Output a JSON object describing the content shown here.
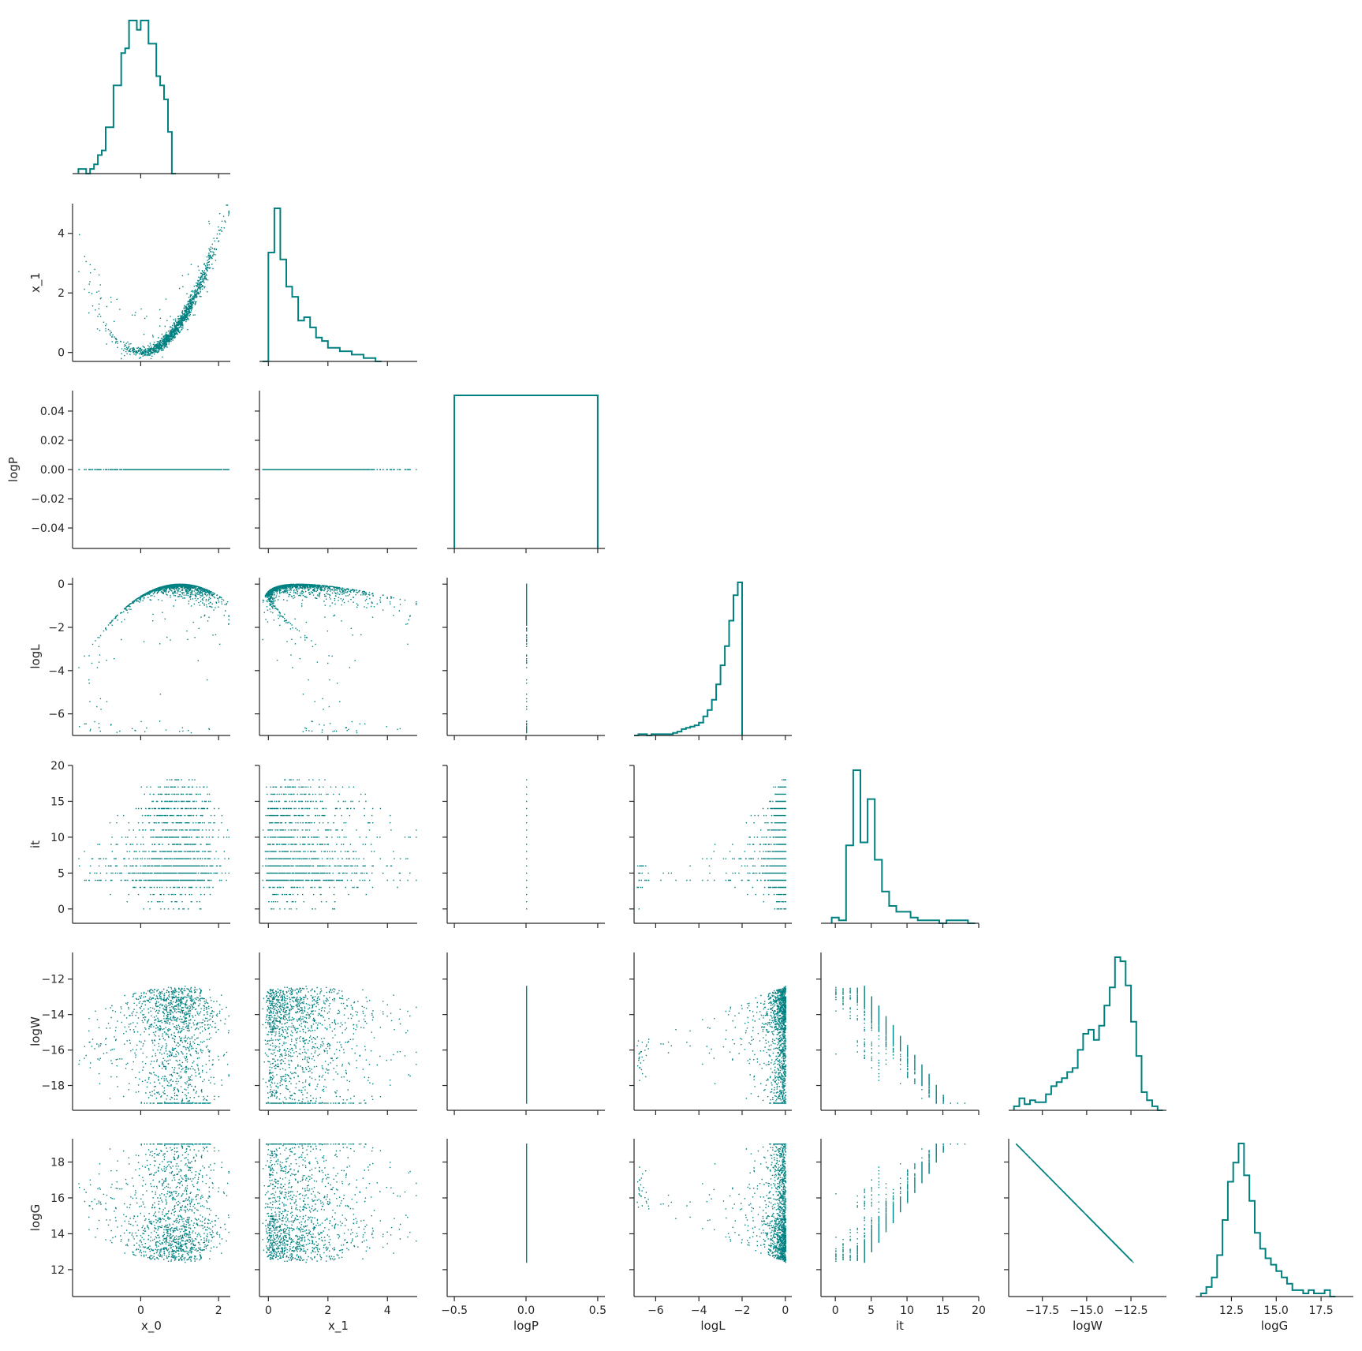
{
  "figure": {
    "color": "#008080",
    "variables": [
      "x_0",
      "x_1",
      "logP",
      "logL",
      "it",
      "logW",
      "logG"
    ]
  },
  "chart_data": {
    "type": "corner",
    "variables": [
      "x_0",
      "x_1",
      "logP",
      "logL",
      "it",
      "logW",
      "logG"
    ],
    "axes": {
      "x_0": {
        "range": [
          -1.75,
          2.3
        ],
        "ticks": [
          0,
          2
        ]
      },
      "x_1": {
        "range": [
          -0.3,
          5.0
        ],
        "ticks": [
          0,
          2,
          4
        ]
      },
      "logP": {
        "range": [
          -0.55,
          0.55
        ],
        "ticks": [
          -0.5,
          0.0,
          0.5
        ]
      },
      "logL": {
        "range": [
          -7.0,
          0.3
        ],
        "ticks": [
          -6,
          -4,
          -2,
          0
        ]
      },
      "it": {
        "range": [
          -2.0,
          20.0
        ],
        "ticks": [
          0,
          5,
          10,
          15,
          20
        ]
      },
      "logW": {
        "range": [
          -19.4,
          -10.5
        ],
        "ticks": [
          -18,
          -16,
          -14,
          -12
        ]
      },
      "logG": {
        "range": [
          10.5,
          19.3
        ],
        "ticks": [
          12,
          14,
          16,
          18
        ]
      }
    },
    "tick_labels": {
      "x_0": [
        "0",
        "2"
      ],
      "x_1": [
        "0",
        "2",
        "4"
      ],
      "logP_x": [
        "−0.5",
        "0.0",
        "0.5"
      ],
      "logP_y": [
        "−0.04",
        "−0.02",
        "0.00",
        "0.02",
        "0.04"
      ],
      "logL": [
        "−6",
        "−4",
        "−2",
        "0"
      ],
      "it": [
        "0",
        "5",
        "10",
        "15",
        "20"
      ],
      "logW": [
        "−18",
        "−16",
        "−14",
        "−12"
      ],
      "logW_x": [
        "−17.5",
        "−15.0",
        "−12.5"
      ],
      "logG_x": [
        "12.5",
        "15.0",
        "17.5"
      ],
      "logG_y": [
        "12",
        "14",
        "16",
        "18"
      ]
    },
    "histograms": {
      "x_0": {
        "bin_start": -1.6,
        "bin_width": 0.1,
        "counts": [
          1,
          1,
          0,
          1,
          2,
          4,
          5,
          10,
          10,
          19,
          19,
          26,
          27,
          33,
          33,
          31,
          33,
          33,
          28,
          28,
          21,
          19,
          16,
          9,
          0
        ]
      },
      "x_1": {
        "bin_start": -0.2,
        "bin_width": 0.2,
        "counts": [
          0,
          32,
          45,
          30,
          22,
          19,
          12,
          13,
          10,
          7,
          6,
          4,
          4,
          3,
          3,
          2,
          2,
          1,
          1,
          0
        ]
      },
      "logP": {
        "bin_start": -0.5,
        "bin_width": 1.0,
        "counts": [
          1
        ]
      },
      "logL": {
        "bin_start": -7.0,
        "bin_width": 0.2,
        "counts": [
          0,
          1,
          1,
          0,
          1,
          1,
          1,
          1,
          1,
          2,
          3,
          5,
          6,
          7,
          8,
          10,
          15,
          20,
          28,
          40,
          55,
          70,
          90,
          110,
          120
        ]
      },
      "it": {
        "values": [
          0,
          1,
          2,
          3,
          4,
          5,
          6,
          7,
          8,
          9,
          10,
          11,
          12,
          13,
          14,
          15,
          16,
          17,
          18,
          19
        ],
        "counts": [
          2,
          1,
          27,
          53,
          28,
          43,
          22,
          11,
          6,
          4,
          4,
          2,
          1,
          1,
          1,
          0,
          1,
          1,
          1,
          0
        ]
      },
      "logW": {
        "bin_start": -19.1,
        "bin_width": 0.3,
        "counts": [
          2,
          6,
          3,
          5,
          4,
          4,
          8,
          12,
          14,
          16,
          19,
          21,
          30,
          38,
          40,
          35,
          42,
          52,
          61,
          76,
          74,
          62,
          44,
          27,
          9,
          5,
          2,
          0
        ]
      },
      "logG": {
        "bin_start": 10.8,
        "bin_width": 0.3,
        "counts": [
          1,
          3,
          6,
          13,
          24,
          36,
          42,
          48,
          38,
          30,
          20,
          15,
          12,
          10,
          8,
          6,
          4,
          2,
          2,
          1,
          2,
          1,
          1,
          2,
          0
        ]
      }
    },
    "notes": [
      "logP is constant at 0 in all samples",
      "logG = -logW"
    ]
  }
}
